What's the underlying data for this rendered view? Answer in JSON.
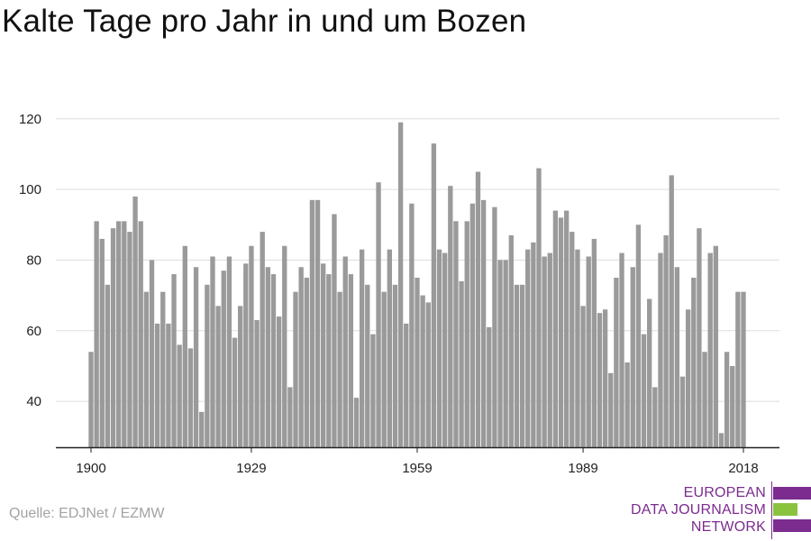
{
  "title": "Kalte Tage pro Jahr in und um Bozen",
  "source": "Quelle: EDJNet / EZMW",
  "logo": {
    "lines": [
      "EUROPEAN",
      "DATA JOURNALISM",
      "NETWORK"
    ],
    "colors": {
      "purple": "#7b2c8e",
      "green": "#8ac43f"
    }
  },
  "colors": {
    "bar": "#9a9a9a",
    "grid": "#dddddd",
    "axis": "#222222",
    "text": "#222222"
  },
  "chart_data": {
    "type": "bar",
    "title": "Kalte Tage pro Jahr in und um Bozen",
    "xlabel": "",
    "ylabel": "",
    "ylim": [
      27,
      123
    ],
    "yticks": [
      40,
      60,
      80,
      100,
      120
    ],
    "xticks": [
      1900,
      1929,
      1959,
      1989,
      2018
    ],
    "grid": true,
    "legend": "none",
    "x": [
      1900,
      1901,
      1902,
      1903,
      1904,
      1905,
      1906,
      1907,
      1908,
      1909,
      1910,
      1911,
      1912,
      1913,
      1914,
      1915,
      1916,
      1917,
      1918,
      1919,
      1920,
      1921,
      1922,
      1923,
      1924,
      1925,
      1926,
      1927,
      1928,
      1929,
      1930,
      1931,
      1932,
      1933,
      1934,
      1935,
      1936,
      1937,
      1938,
      1939,
      1940,
      1941,
      1942,
      1943,
      1944,
      1945,
      1946,
      1947,
      1948,
      1949,
      1950,
      1951,
      1952,
      1953,
      1954,
      1955,
      1956,
      1957,
      1958,
      1959,
      1960,
      1961,
      1962,
      1963,
      1964,
      1965,
      1966,
      1967,
      1968,
      1969,
      1970,
      1971,
      1972,
      1973,
      1974,
      1975,
      1976,
      1977,
      1978,
      1979,
      1980,
      1981,
      1982,
      1983,
      1984,
      1985,
      1986,
      1987,
      1988,
      1989,
      1990,
      1991,
      1992,
      1993,
      1994,
      1995,
      1996,
      1997,
      1998,
      1999,
      2000,
      2001,
      2002,
      2003,
      2004,
      2005,
      2006,
      2007,
      2008,
      2009,
      2010,
      2011,
      2012,
      2013,
      2014,
      2015,
      2016,
      2017,
      2018
    ],
    "values": [
      54,
      91,
      86,
      73,
      89,
      91,
      91,
      88,
      98,
      91,
      71,
      80,
      62,
      71,
      62,
      76,
      56,
      84,
      55,
      78,
      37,
      73,
      81,
      67,
      77,
      81,
      58,
      67,
      79,
      84,
      63,
      88,
      78,
      76,
      64,
      84,
      44,
      71,
      78,
      75,
      97,
      97,
      79,
      76,
      93,
      71,
      81,
      76,
      41,
      83,
      73,
      59,
      102,
      71,
      83,
      73,
      119,
      62,
      96,
      75,
      70,
      68,
      113,
      83,
      82,
      101,
      91,
      74,
      91,
      96,
      105,
      97,
      61,
      95,
      80,
      80,
      87,
      73,
      73,
      83,
      85,
      106,
      81,
      82,
      94,
      92,
      94,
      88,
      83,
      67,
      81,
      86,
      65,
      66,
      48,
      75,
      82,
      51,
      78,
      90,
      59,
      69,
      44,
      82,
      87,
      104,
      78,
      47,
      66,
      75,
      89,
      54,
      82,
      84,
      31,
      54,
      50,
      71,
      71
    ]
  }
}
